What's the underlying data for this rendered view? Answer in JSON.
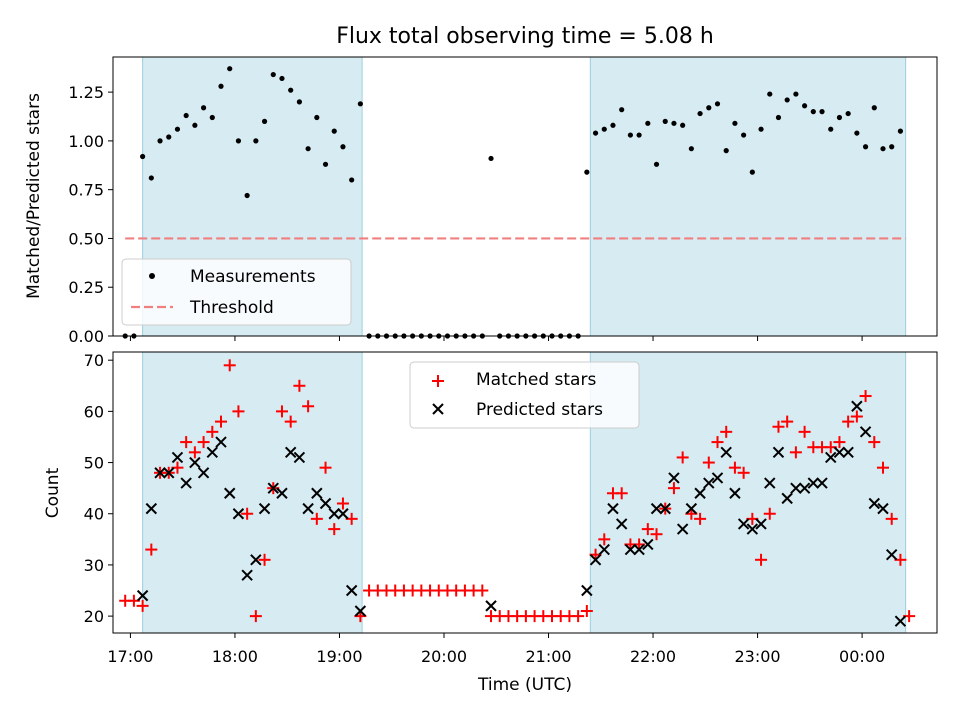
{
  "chart_data": [
    {
      "type": "scatter",
      "title": "Flux total observing time = 5.08 h",
      "xlabel": "",
      "ylabel": "Matched/Predicted stars",
      "ylim": [
        0,
        1.43
      ],
      "xlim": [
        "16:50",
        "00:43"
      ],
      "yticks": [
        "0.00",
        "0.25",
        "0.50",
        "0.75",
        "1.00",
        "1.25"
      ],
      "legend_placement": "lower-left",
      "shaded_intervals": [
        [
          "17:07",
          "19:13"
        ],
        [
          "21:24",
          "00:25"
        ]
      ],
      "threshold": {
        "name": "Threshold",
        "value": 0.5,
        "from": "16:57",
        "to": "00:25",
        "color": "#f08080"
      },
      "series": [
        {
          "name": "Measurements",
          "color": "#000000",
          "points": [
            [
              "16:57",
              0
            ],
            [
              "17:02",
              0
            ],
            [
              "17:07",
              0.92
            ],
            [
              "17:12",
              0.81
            ],
            [
              "17:17",
              1.0
            ],
            [
              "17:22",
              1.02
            ],
            [
              "17:27",
              1.06
            ],
            [
              "17:32",
              1.13
            ],
            [
              "17:37",
              1.08
            ],
            [
              "17:42",
              1.17
            ],
            [
              "17:47",
              1.12
            ],
            [
              "17:52",
              1.28
            ],
            [
              "17:57",
              1.37
            ],
            [
              "18:02",
              1.0
            ],
            [
              "18:07",
              0.72
            ],
            [
              "18:12",
              1.0
            ],
            [
              "18:17",
              1.1
            ],
            [
              "18:22",
              1.34
            ],
            [
              "18:27",
              1.32
            ],
            [
              "18:32",
              1.26
            ],
            [
              "18:37",
              1.2
            ],
            [
              "18:42",
              0.96
            ],
            [
              "18:47",
              1.12
            ],
            [
              "18:52",
              0.88
            ],
            [
              "18:57",
              1.05
            ],
            [
              "19:02",
              0.97
            ],
            [
              "19:07",
              0.8
            ],
            [
              "19:12",
              1.19
            ],
            [
              "19:17",
              0
            ],
            [
              "19:22",
              0
            ],
            [
              "19:27",
              0
            ],
            [
              "19:32",
              0
            ],
            [
              "19:37",
              0
            ],
            [
              "19:42",
              0
            ],
            [
              "19:47",
              0
            ],
            [
              "19:52",
              0
            ],
            [
              "19:57",
              0
            ],
            [
              "20:02",
              0
            ],
            [
              "20:07",
              0
            ],
            [
              "20:12",
              0
            ],
            [
              "20:17",
              0
            ],
            [
              "20:22",
              0
            ],
            [
              "20:27",
              0.91
            ],
            [
              "20:32",
              0
            ],
            [
              "20:37",
              0
            ],
            [
              "20:42",
              0
            ],
            [
              "20:47",
              0
            ],
            [
              "20:52",
              0
            ],
            [
              "20:57",
              0
            ],
            [
              "21:02",
              0
            ],
            [
              "21:07",
              0
            ],
            [
              "21:12",
              0
            ],
            [
              "21:17",
              0
            ],
            [
              "21:22",
              0.84
            ],
            [
              "21:27",
              1.04
            ],
            [
              "21:32",
              1.06
            ],
            [
              "21:37",
              1.08
            ],
            [
              "21:42",
              1.16
            ],
            [
              "21:47",
              1.03
            ],
            [
              "21:52",
              1.03
            ],
            [
              "21:57",
              1.09
            ],
            [
              "22:02",
              0.88
            ],
            [
              "22:07",
              1.1
            ],
            [
              "22:12",
              1.09
            ],
            [
              "22:17",
              1.08
            ],
            [
              "22:22",
              0.96
            ],
            [
              "22:27",
              1.14
            ],
            [
              "22:32",
              1.17
            ],
            [
              "22:37",
              1.19
            ],
            [
              "22:42",
              0.95
            ],
            [
              "22:47",
              1.09
            ],
            [
              "22:52",
              1.03
            ],
            [
              "22:57",
              0.84
            ],
            [
              "23:02",
              1.06
            ],
            [
              "23:07",
              1.24
            ],
            [
              "23:12",
              1.12
            ],
            [
              "23:17",
              1.21
            ],
            [
              "23:22",
              1.24
            ],
            [
              "23:27",
              1.18
            ],
            [
              "23:32",
              1.15
            ],
            [
              "23:37",
              1.15
            ],
            [
              "23:42",
              1.06
            ],
            [
              "23:47",
              1.12
            ],
            [
              "23:52",
              1.14
            ],
            [
              "23:57",
              1.04
            ],
            [
              "00:02",
              0.97
            ],
            [
              "00:07",
              1.17
            ],
            [
              "00:12",
              0.96
            ],
            [
              "00:17",
              0.97
            ],
            [
              "00:22",
              1.05
            ]
          ]
        }
      ]
    },
    {
      "type": "scatter",
      "title": "",
      "xlabel": "Time (UTC)",
      "ylabel": "Count",
      "ylim": [
        16.7,
        71.6
      ],
      "xlim": [
        "16:50",
        "00:43"
      ],
      "xticks": [
        "17:00",
        "18:00",
        "19:00",
        "20:00",
        "21:00",
        "22:00",
        "23:00",
        "00:00"
      ],
      "yticks": [
        "20",
        "30",
        "40",
        "50",
        "60",
        "70"
      ],
      "legend_placement": "upper-center",
      "shaded_intervals": [
        [
          "17:07",
          "19:13"
        ],
        [
          "21:24",
          "00:25"
        ]
      ],
      "series": [
        {
          "name": "Matched stars",
          "marker": "plus",
          "color": "#ff0000",
          "points": [
            [
              "16:57",
              23
            ],
            [
              "17:02",
              23
            ],
            [
              "17:07",
              22
            ],
            [
              "17:12",
              33
            ],
            [
              "17:17",
              48
            ],
            [
              "17:22",
              48
            ],
            [
              "17:27",
              49
            ],
            [
              "17:32",
              54
            ],
            [
              "17:37",
              52
            ],
            [
              "17:42",
              54
            ],
            [
              "17:47",
              56
            ],
            [
              "17:52",
              58
            ],
            [
              "17:57",
              69
            ],
            [
              "18:02",
              60
            ],
            [
              "18:07",
              40
            ],
            [
              "18:12",
              20
            ],
            [
              "18:17",
              31
            ],
            [
              "18:22",
              45
            ],
            [
              "18:27",
              60
            ],
            [
              "18:32",
              58
            ],
            [
              "18:37",
              65
            ],
            [
              "18:42",
              61
            ],
            [
              "18:47",
              39
            ],
            [
              "18:52",
              49
            ],
            [
              "18:57",
              37
            ],
            [
              "19:02",
              42
            ],
            [
              "19:07",
              39
            ],
            [
              "19:12",
              20
            ],
            [
              "19:17",
              25
            ],
            [
              "19:22",
              25
            ],
            [
              "19:27",
              25
            ],
            [
              "19:32",
              25
            ],
            [
              "19:37",
              25
            ],
            [
              "19:42",
              25
            ],
            [
              "19:47",
              25
            ],
            [
              "19:52",
              25
            ],
            [
              "19:57",
              25
            ],
            [
              "20:02",
              25
            ],
            [
              "20:07",
              25
            ],
            [
              "20:12",
              25
            ],
            [
              "20:17",
              25
            ],
            [
              "20:22",
              25
            ],
            [
              "20:27",
              20
            ],
            [
              "20:32",
              20
            ],
            [
              "20:37",
              20
            ],
            [
              "20:42",
              20
            ],
            [
              "20:47",
              20
            ],
            [
              "20:52",
              20
            ],
            [
              "20:57",
              20
            ],
            [
              "21:02",
              20
            ],
            [
              "21:07",
              20
            ],
            [
              "21:12",
              20
            ],
            [
              "21:17",
              20
            ],
            [
              "21:22",
              21
            ],
            [
              "21:27",
              32
            ],
            [
              "21:32",
              35
            ],
            [
              "21:37",
              44
            ],
            [
              "21:42",
              44
            ],
            [
              "21:47",
              34
            ],
            [
              "21:52",
              34
            ],
            [
              "21:57",
              37
            ],
            [
              "22:02",
              36
            ],
            [
              "22:07",
              41
            ],
            [
              "22:12",
              45
            ],
            [
              "22:17",
              51
            ],
            [
              "22:22",
              40
            ],
            [
              "22:27",
              39
            ],
            [
              "22:32",
              50
            ],
            [
              "22:37",
              54
            ],
            [
              "22:42",
              56
            ],
            [
              "22:47",
              49
            ],
            [
              "22:52",
              48
            ],
            [
              "22:57",
              39
            ],
            [
              "23:02",
              31
            ],
            [
              "23:07",
              40
            ],
            [
              "23:12",
              57
            ],
            [
              "23:17",
              58
            ],
            [
              "23:22",
              52
            ],
            [
              "23:27",
              56
            ],
            [
              "23:32",
              53
            ],
            [
              "23:37",
              53
            ],
            [
              "23:42",
              53
            ],
            [
              "23:47",
              54
            ],
            [
              "23:52",
              58
            ],
            [
              "23:57",
              59
            ],
            [
              "00:02",
              63
            ],
            [
              "00:07",
              54
            ],
            [
              "00:12",
              49
            ],
            [
              "00:17",
              39
            ],
            [
              "00:22",
              31
            ],
            [
              "00:27",
              20
            ]
          ]
        },
        {
          "name": "Predicted stars",
          "marker": "x",
          "color": "#000000",
          "points": [
            [
              "17:07",
              24
            ],
            [
              "17:12",
              41
            ],
            [
              "17:17",
              48
            ],
            [
              "17:22",
              48
            ],
            [
              "17:27",
              51
            ],
            [
              "17:32",
              46
            ],
            [
              "17:37",
              50
            ],
            [
              "17:42",
              48
            ],
            [
              "17:47",
              52
            ],
            [
              "17:52",
              54
            ],
            [
              "17:57",
              44
            ],
            [
              "18:02",
              40
            ],
            [
              "18:07",
              28
            ],
            [
              "18:12",
              31
            ],
            [
              "18:17",
              41
            ],
            [
              "18:22",
              45
            ],
            [
              "18:27",
              44
            ],
            [
              "18:32",
              52
            ],
            [
              "18:37",
              51
            ],
            [
              "18:42",
              41
            ],
            [
              "18:47",
              44
            ],
            [
              "18:52",
              42
            ],
            [
              "18:57",
              40
            ],
            [
              "19:02",
              40
            ],
            [
              "19:07",
              25
            ],
            [
              "19:12",
              21
            ],
            [
              "20:27",
              22
            ],
            [
              "21:22",
              25
            ],
            [
              "21:27",
              31
            ],
            [
              "21:32",
              33
            ],
            [
              "21:37",
              41
            ],
            [
              "21:42",
              38
            ],
            [
              "21:47",
              33
            ],
            [
              "21:52",
              33
            ],
            [
              "21:57",
              34
            ],
            [
              "22:02",
              41
            ],
            [
              "22:07",
              41
            ],
            [
              "22:12",
              47
            ],
            [
              "22:17",
              37
            ],
            [
              "22:22",
              41
            ],
            [
              "22:27",
              44
            ],
            [
              "22:32",
              46
            ],
            [
              "22:37",
              47
            ],
            [
              "22:42",
              52
            ],
            [
              "22:47",
              44
            ],
            [
              "22:52",
              38
            ],
            [
              "22:57",
              37
            ],
            [
              "23:02",
              38
            ],
            [
              "23:07",
              46
            ],
            [
              "23:12",
              52
            ],
            [
              "23:17",
              43
            ],
            [
              "23:22",
              45
            ],
            [
              "23:27",
              45
            ],
            [
              "23:32",
              46
            ],
            [
              "23:37",
              46
            ],
            [
              "23:42",
              51
            ],
            [
              "23:47",
              52
            ],
            [
              "23:52",
              52
            ],
            [
              "23:57",
              61
            ],
            [
              "00:02",
              56
            ],
            [
              "00:07",
              42
            ],
            [
              "00:12",
              41
            ],
            [
              "00:17",
              32
            ],
            [
              "00:22",
              19
            ]
          ]
        }
      ]
    }
  ]
}
